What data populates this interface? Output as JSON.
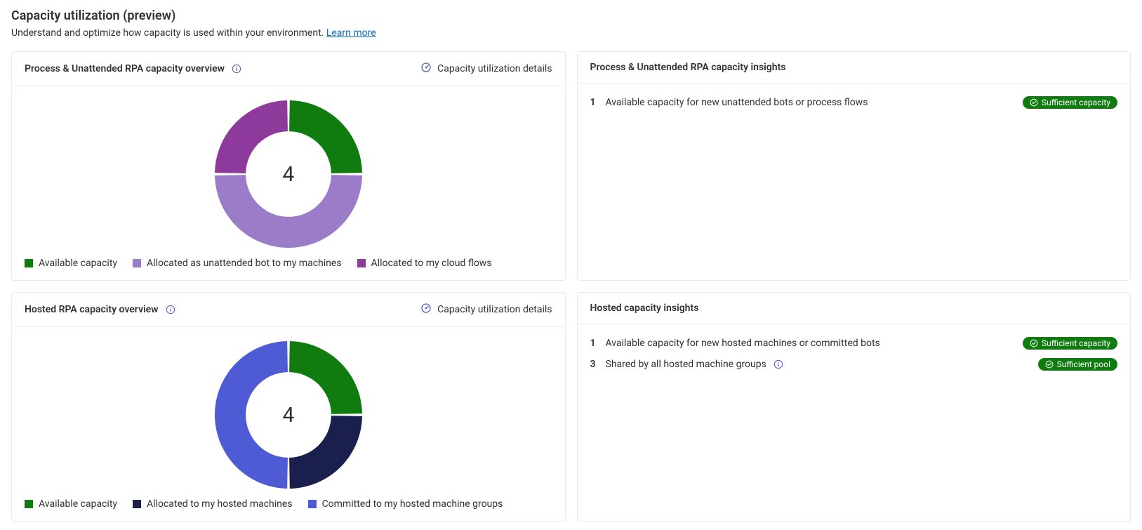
{
  "header": {
    "title": "Capacity utilization (preview)",
    "subtitle": "Understand and optimize how capacity is used within your environment.",
    "learn_more": "Learn more"
  },
  "colors": {
    "link": "#0f6cbd",
    "info_icon": "#5b5fc7",
    "badge_green": "#107c10",
    "text": "#323130",
    "border": "#edebe9"
  },
  "cards": {
    "process_overview": {
      "title": "Process & Unattended RPA capacity overview",
      "details_link": "Capacity utilization details",
      "donut": {
        "type": "donut",
        "total": "4",
        "inner_ratio": 0.58,
        "gap_deg": 2,
        "slices": [
          {
            "label": "Available capacity",
            "value": 1,
            "color": "#107c10"
          },
          {
            "label": "Allocated as unattended bot to my machines",
            "value": 2,
            "color": "#9a7cc8"
          },
          {
            "label": "Allocated to my cloud flows",
            "value": 1,
            "color": "#8e3a9d"
          }
        ]
      }
    },
    "process_insights": {
      "title": "Process & Unattended RPA capacity insights",
      "items": [
        {
          "count": "1",
          "text": "Available capacity for new unattended bots or process flows",
          "has_info": false,
          "badge": {
            "label": "Sufficient capacity",
            "style": "green"
          }
        }
      ]
    },
    "hosted_overview": {
      "title": "Hosted RPA capacity overview",
      "details_link": "Capacity utilization details",
      "donut": {
        "type": "donut",
        "total": "4",
        "inner_ratio": 0.58,
        "gap_deg": 2,
        "slices": [
          {
            "label": "Available capacity",
            "value": 1,
            "color": "#107c10"
          },
          {
            "label": "Allocated to my hosted machines",
            "value": 1,
            "color": "#1a1f4e"
          },
          {
            "label": "Committed to my hosted machine groups",
            "value": 2,
            "color": "#4f5bd5"
          }
        ]
      }
    },
    "hosted_insights": {
      "title": "Hosted capacity insights",
      "items": [
        {
          "count": "1",
          "text": "Available capacity for new hosted machines or committed bots",
          "has_info": false,
          "badge": {
            "label": "Sufficient capacity",
            "style": "green"
          }
        },
        {
          "count": "3",
          "text": "Shared by all hosted machine groups",
          "has_info": true,
          "badge": {
            "label": "Sufficient pool",
            "style": "green"
          }
        }
      ]
    }
  }
}
